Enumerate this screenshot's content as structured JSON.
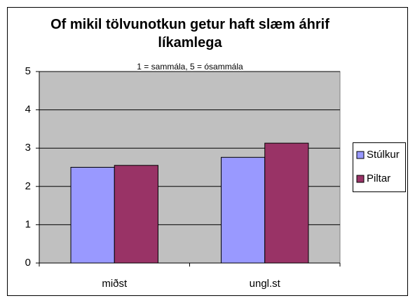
{
  "chart_data": {
    "type": "bar",
    "title": "Of mikil tölvunotkun getur haft slæm áhrif líkamlega",
    "subtitle": "1 = sammála, 5 = ósammála",
    "categories": [
      "miðst",
      "ungl.st"
    ],
    "series": [
      {
        "name": "Stúlkur",
        "color": "#9999ff",
        "values": [
          2.5,
          2.76
        ]
      },
      {
        "name": "Piltar",
        "color": "#993366",
        "values": [
          2.55,
          3.13
        ]
      }
    ],
    "ylim": [
      0,
      5
    ],
    "yticks": [
      0,
      1,
      2,
      3,
      4,
      5
    ],
    "grid": true,
    "legend": "right"
  }
}
